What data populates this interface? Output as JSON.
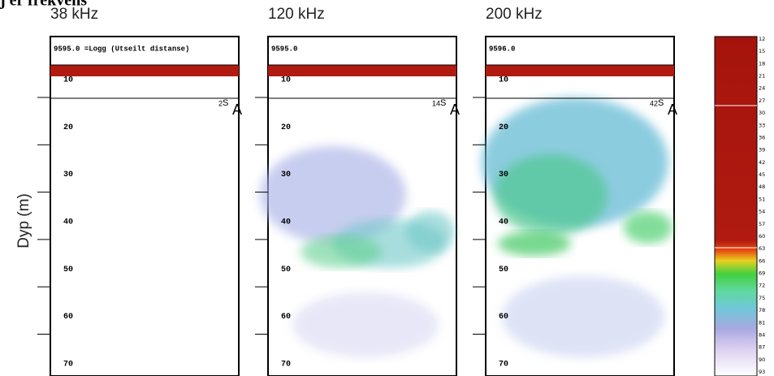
{
  "title": "j er frekvens",
  "y_axis_label": "Dyp (m)",
  "marker": {
    "sup": "S",
    "main": "A"
  },
  "panels": [
    {
      "frequency": "38 kHz",
      "header": "9595.0 =Logg (Utseilt distanse)",
      "marker_prefix": "2",
      "depth_labels": [
        "10",
        "20",
        "30",
        "40",
        "50",
        "60",
        "70"
      ]
    },
    {
      "frequency": "120 kHz",
      "header": "9595.0",
      "marker_prefix": "14",
      "depth_labels": [
        "10",
        "20",
        "30",
        "40",
        "50",
        "60",
        "70"
      ]
    },
    {
      "frequency": "200 kHz",
      "header": "9596.0",
      "marker_prefix": "42",
      "depth_labels": [
        "10",
        "20",
        "30",
        "40",
        "50",
        "60",
        "70"
      ]
    }
  ],
  "colorbar": {
    "labels": [
      "12",
      "15",
      "18",
      "21",
      "24",
      "27",
      "30",
      "33",
      "36",
      "39",
      "42",
      "45",
      "48",
      "51",
      "54",
      "57",
      "60",
      "63",
      "66",
      "69",
      "72",
      "75",
      "78",
      "81",
      "84",
      "87",
      "90",
      "93"
    ]
  }
}
